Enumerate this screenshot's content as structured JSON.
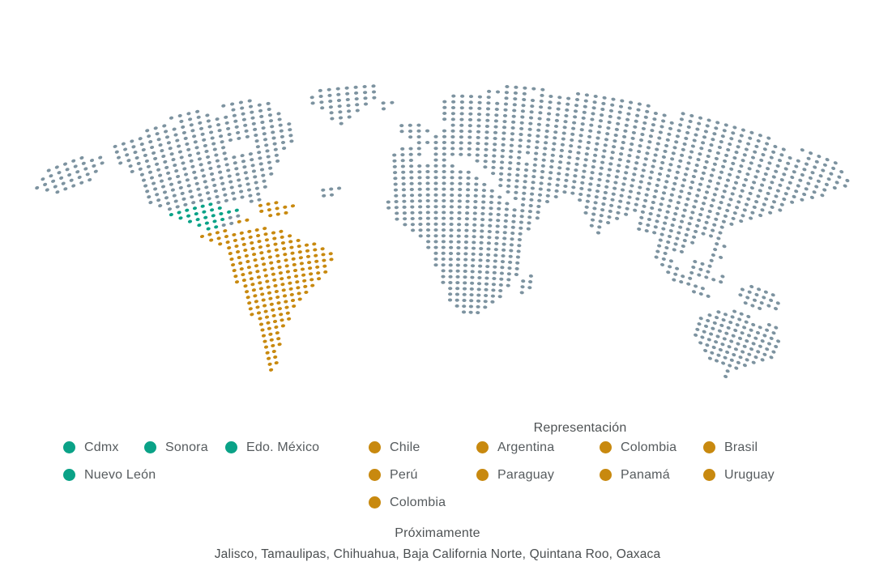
{
  "map": {
    "colors": {
      "g": "#7d93a0",
      "m": "#0aa287",
      "s": "#c8890f"
    },
    "geometry": {
      "cols": 100,
      "colPitch": 11,
      "rowPitch": 7.2,
      "radius": 1300,
      "centerX": 538,
      "apexY": 104,
      "dotRx": 2.6,
      "dotRy": 2.0
    },
    "rows": [
      [
        [
          20,
          23,
          "g"
        ],
        [
          26,
          29,
          "g"
        ],
        [
          37,
          43,
          "g"
        ],
        [
          58,
          62,
          "g"
        ],
        [
          66,
          74,
          "g"
        ],
        [
          78,
          88,
          "g"
        ],
        [
          92,
          96,
          "g"
        ]
      ],
      [
        [
          17,
          19,
          "g"
        ],
        [
          21,
          24,
          "g"
        ],
        [
          27,
          31,
          "g"
        ],
        [
          36,
          43,
          "g"
        ],
        [
          56,
          60,
          "g"
        ],
        [
          62,
          76,
          "g"
        ],
        [
          78,
          90,
          "g"
        ],
        [
          93,
          97,
          "g"
        ]
      ],
      [
        [
          5,
          9,
          "g"
        ],
        [
          13,
          31,
          "g"
        ],
        [
          36,
          43,
          "g"
        ],
        [
          52,
          56,
          "g"
        ],
        [
          58,
          98,
          "g"
        ]
      ],
      [
        [
          4,
          11,
          "g"
        ],
        [
          13,
          32,
          "g"
        ],
        [
          37,
          42,
          "g"
        ],
        [
          44,
          45,
          "g"
        ],
        [
          51,
          98,
          "g"
        ]
      ],
      [
        [
          3,
          11,
          "g"
        ],
        [
          13,
          32,
          "g"
        ],
        [
          38,
          41,
          "g"
        ],
        [
          44,
          44,
          "g"
        ],
        [
          51,
          97,
          "g"
        ]
      ],
      [
        [
          4,
          10,
          "g"
        ],
        [
          13,
          33,
          "g"
        ],
        [
          38,
          40,
          "g"
        ],
        [
          51,
          96,
          "g"
        ]
      ],
      [
        [
          5,
          9,
          "g"
        ],
        [
          14,
          33,
          "g"
        ],
        [
          39,
          39,
          "g"
        ],
        [
          51,
          96,
          "g"
        ]
      ],
      [
        [
          14,
          25,
          "g"
        ],
        [
          29,
          33,
          "g"
        ],
        [
          46,
          48,
          "g"
        ],
        [
          52,
          95,
          "g"
        ]
      ],
      [
        [
          15,
          25,
          "g"
        ],
        [
          29,
          33,
          "g"
        ],
        [
          46,
          49,
          "g"
        ],
        [
          51,
          94,
          "g"
        ]
      ],
      [
        [
          15,
          32,
          "g"
        ],
        [
          47,
          48,
          "g"
        ],
        [
          50,
          93,
          "g"
        ]
      ],
      [
        [
          15,
          31,
          "g"
        ],
        [
          48,
          92,
          "g"
        ]
      ],
      [
        [
          15,
          31,
          "g"
        ],
        [
          46,
          48,
          "g"
        ],
        [
          50,
          92,
          "g"
        ]
      ],
      [
        [
          15,
          30,
          "g"
        ],
        [
          45,
          48,
          "g"
        ],
        [
          50,
          60,
          "g"
        ],
        [
          62,
          91,
          "g"
        ]
      ],
      [
        [
          15,
          30,
          "g"
        ],
        [
          45,
          47,
          "g"
        ],
        [
          50,
          51,
          "g"
        ],
        [
          55,
          90,
          "g"
        ]
      ],
      [
        [
          16,
          29,
          "g"
        ],
        [
          45,
          52,
          "g"
        ],
        [
          56,
          89,
          "g"
        ]
      ],
      [
        [
          17,
          29,
          "g"
        ],
        [
          45,
          54,
          "g"
        ],
        [
          57,
          88,
          "g"
        ]
      ],
      [
        [
          17,
          22,
          "m"
        ],
        [
          23,
          28,
          "g"
        ],
        [
          45,
          55,
          "g"
        ],
        [
          58,
          87,
          "g"
        ]
      ],
      [
        [
          18,
          23,
          "m"
        ],
        [
          27,
          28,
          "g"
        ],
        [
          36,
          38,
          "g"
        ],
        [
          45,
          56,
          "g"
        ],
        [
          58,
          86,
          "g"
        ]
      ],
      [
        [
          19,
          25,
          "m"
        ],
        [
          28,
          30,
          "s"
        ],
        [
          36,
          37,
          "g"
        ],
        [
          45,
          57,
          "g"
        ],
        [
          59,
          65,
          "g"
        ],
        [
          68,
          86,
          "g"
        ]
      ],
      [
        [
          20,
          23,
          "m"
        ],
        [
          24,
          25,
          "g"
        ],
        [
          28,
          32,
          "s"
        ],
        [
          45,
          58,
          "g"
        ],
        [
          60,
          64,
          "g"
        ],
        [
          69,
          74,
          "g"
        ],
        [
          76,
          86,
          "g"
        ]
      ],
      [
        [
          21,
          22,
          "m"
        ],
        [
          23,
          24,
          "g"
        ],
        [
          25,
          26,
          "s"
        ],
        [
          29,
          31,
          "s"
        ],
        [
          44,
          59,
          "g"
        ],
        [
          61,
          63,
          "g"
        ],
        [
          69,
          73,
          "g"
        ],
        [
          76,
          83,
          "g"
        ],
        [
          86,
          87,
          "g"
        ]
      ],
      [
        [
          20,
          23,
          "s"
        ],
        [
          44,
          63,
          "g"
        ],
        [
          70,
          72,
          "g"
        ],
        [
          76,
          83,
          "g"
        ],
        [
          86,
          86,
          "g"
        ]
      ],
      [
        [
          21,
          28,
          "s"
        ],
        [
          45,
          63,
          "g"
        ],
        [
          70,
          71,
          "g"
        ],
        [
          79,
          82,
          "g"
        ],
        [
          86,
          87,
          "g"
        ]
      ],
      [
        [
          22,
          30,
          "s"
        ],
        [
          45,
          62,
          "g"
        ],
        [
          71,
          71,
          "g"
        ],
        [
          79,
          82,
          "g"
        ],
        [
          86,
          86,
          "g"
        ]
      ],
      [
        [
          23,
          31,
          "s"
        ],
        [
          46,
          62,
          "g"
        ],
        [
          79,
          80,
          "g"
        ],
        [
          84,
          86,
          "g"
        ]
      ],
      [
        [
          23,
          32,
          "s"
        ],
        [
          47,
          61,
          "g"
        ],
        [
          79,
          81,
          "g"
        ],
        [
          84,
          86,
          "g"
        ],
        [
          88,
          88,
          "g"
        ],
        [
          92,
          95,
          "g"
        ]
      ],
      [
        [
          23,
          34,
          "s"
        ],
        [
          48,
          61,
          "g"
        ],
        [
          80,
          82,
          "g"
        ],
        [
          84,
          88,
          "g"
        ],
        [
          91,
          96,
          "g"
        ]
      ],
      [
        [
          23,
          35,
          "s"
        ],
        [
          49,
          61,
          "g"
        ],
        [
          81,
          84,
          "g"
        ],
        [
          91,
          96,
          "g"
        ]
      ],
      [
        [
          23,
          36,
          "s"
        ],
        [
          49,
          61,
          "g"
        ],
        [
          82,
          86,
          "g"
        ],
        [
          92,
          94,
          "g"
        ]
      ],
      [
        [
          23,
          36,
          "s"
        ],
        [
          50,
          61,
          "g"
        ],
        [
          85,
          87,
          "g"
        ]
      ],
      [
        [
          23,
          35,
          "s"
        ],
        [
          50,
          61,
          "g"
        ],
        [
          91,
          93,
          "g"
        ],
        [
          96,
          97,
          "g"
        ]
      ],
      [
        [
          24,
          35,
          "s"
        ],
        [
          50,
          61,
          "g"
        ],
        [
          89,
          97,
          "g"
        ]
      ],
      [
        [
          24,
          34,
          "s"
        ],
        [
          51,
          61,
          "g"
        ],
        [
          63,
          63,
          "g"
        ],
        [
          88,
          98,
          "g"
        ]
      ],
      [
        [
          24,
          33,
          "s"
        ],
        [
          51,
          60,
          "g"
        ],
        [
          62,
          63,
          "g"
        ],
        [
          87,
          98,
          "g"
        ]
      ],
      [
        [
          24,
          32,
          "s"
        ],
        [
          51,
          60,
          "g"
        ],
        [
          62,
          63,
          "g"
        ],
        [
          87,
          98,
          "g"
        ]
      ],
      [
        [
          24,
          31,
          "s"
        ],
        [
          52,
          59,
          "g"
        ],
        [
          62,
          62,
          "g"
        ],
        [
          87,
          98,
          "g"
        ]
      ],
      [
        [
          24,
          30,
          "s"
        ],
        [
          52,
          59,
          "g"
        ],
        [
          87,
          97,
          "g"
        ]
      ],
      [
        [
          25,
          29,
          "s"
        ],
        [
          52,
          58,
          "g"
        ],
        [
          88,
          96,
          "g"
        ]
      ],
      [
        [
          25,
          29,
          "s"
        ],
        [
          53,
          57,
          "g"
        ],
        [
          89,
          95,
          "g"
        ]
      ],
      [
        [
          25,
          28,
          "s"
        ],
        [
          54,
          56,
          "g"
        ],
        [
          90,
          94,
          "g"
        ]
      ],
      [
        [
          25,
          27,
          "s"
        ],
        [
          93,
          93,
          "g"
        ]
      ],
      [
        [
          25,
          27,
          "s"
        ],
        [
          93,
          93,
          "g"
        ]
      ],
      [
        [
          25,
          27,
          "s"
        ]
      ],
      [
        [
          25,
          26,
          "s"
        ]
      ],
      [
        [
          25,
          26,
          "s"
        ]
      ],
      [
        [
          25,
          26,
          "s"
        ]
      ],
      [
        [
          25,
          25,
          "s"
        ]
      ]
    ]
  },
  "legend": {
    "mexico": {
      "color": "#0aa287",
      "rows": [
        [
          "Cdmx",
          "Sonora",
          "Edo. México"
        ],
        [
          "Nuevo León"
        ]
      ]
    },
    "representation": {
      "title": "Representación",
      "color": "#c8890f",
      "columns": [
        [
          "Chile",
          "Perú",
          "Colombia"
        ],
        [
          "Argentina",
          "Paraguay"
        ],
        [
          "Colombia",
          "Panamá"
        ],
        [
          "Brasil",
          "Uruguay"
        ]
      ]
    }
  },
  "coming_soon": {
    "title": "Próximamente",
    "regions": "Jalisco, Tamaulipas, Chihuahua, Baja California Norte, Quintana Roo, Oaxaca"
  }
}
